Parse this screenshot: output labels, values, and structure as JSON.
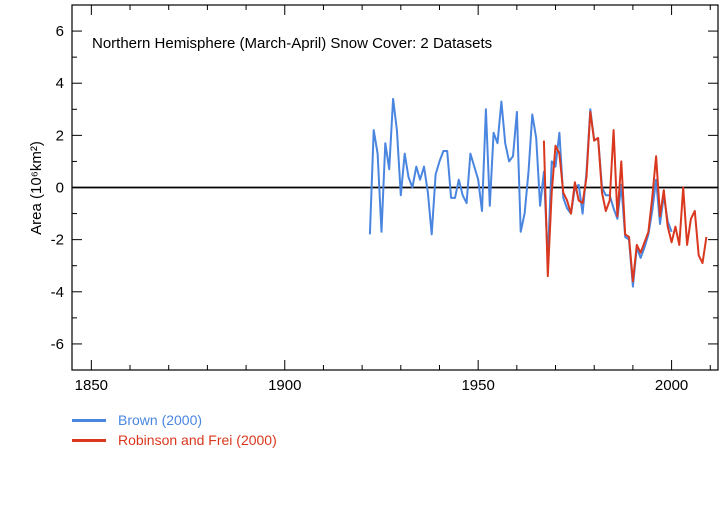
{
  "chart_data": {
    "type": "line",
    "title": "Northern Hemisphere (March-April) Snow Cover: 2 Datasets",
    "ylabel": "Area (10⁶km²)",
    "xlabel": "",
    "xlim": [
      1845,
      2012
    ],
    "ylim": [
      -7,
      7
    ],
    "x_ticks": [
      1850,
      1900,
      1950,
      2000
    ],
    "y_ticks": [
      -6,
      -4,
      -2,
      0,
      2,
      4,
      6
    ],
    "x_tick_labels": [
      "1850",
      "1900",
      "1950",
      "2000"
    ],
    "y_tick_labels": [
      "-6",
      "-4",
      "-2",
      "0",
      "2",
      "4",
      "6"
    ],
    "zero_line": true,
    "grid": false,
    "legend_position": "below-left",
    "series": [
      {
        "name": "Brown (2000)",
        "color": "#4a86e0",
        "x": [
          1922,
          1923,
          1924,
          1925,
          1926,
          1927,
          1928,
          1929,
          1930,
          1931,
          1932,
          1933,
          1934,
          1935,
          1936,
          1937,
          1938,
          1939,
          1940,
          1941,
          1942,
          1943,
          1944,
          1945,
          1946,
          1947,
          1948,
          1949,
          1950,
          1951,
          1952,
          1953,
          1954,
          1955,
          1956,
          1957,
          1958,
          1959,
          1960,
          1961,
          1962,
          1963,
          1964,
          1965,
          1966,
          1967,
          1968,
          1969,
          1970,
          1971,
          1972,
          1973,
          1974,
          1975,
          1976,
          1977,
          1978,
          1979,
          1980,
          1981,
          1982,
          1983,
          1984,
          1985,
          1986,
          1987,
          1988,
          1989,
          1990,
          1991,
          1992,
          1993,
          1994,
          1995,
          1996,
          1997,
          1998,
          1999,
          2000
        ],
        "values": [
          -1.8,
          2.2,
          1.3,
          -1.7,
          1.7,
          0.7,
          3.4,
          2.2,
          -0.3,
          1.3,
          0.4,
          0.0,
          0.8,
          0.3,
          0.8,
          -0.2,
          -1.8,
          0.5,
          1.0,
          1.4,
          1.4,
          -0.4,
          -0.4,
          0.3,
          -0.3,
          -0.6,
          1.3,
          0.8,
          0.3,
          -0.9,
          3.0,
          -0.7,
          2.1,
          1.7,
          3.3,
          1.7,
          1.0,
          1.2,
          2.9,
          -1.7,
          -1.0,
          0.6,
          2.8,
          1.9,
          -0.7,
          0.6,
          -2.8,
          1.0,
          0.8,
          2.1,
          -0.4,
          -0.8,
          -1.0,
          0.0,
          0.1,
          -1.0,
          0.6,
          3.0,
          1.8,
          1.9,
          0.0,
          -0.3,
          -0.3,
          -0.8,
          -1.2,
          0.1,
          -1.9,
          -2.0,
          -3.8,
          -2.3,
          -2.7,
          -2.3,
          -1.8,
          -0.9,
          0.3,
          -1.4,
          -0.3,
          -1.3,
          -1.7
        ]
      },
      {
        "name": "Robinson and Frei (2000)",
        "color": "#d9381e",
        "x": [
          1967,
          1968,
          1969,
          1970,
          1971,
          1972,
          1973,
          1974,
          1975,
          1976,
          1977,
          1978,
          1979,
          1980,
          1981,
          1982,
          1983,
          1984,
          1985,
          1986,
          1987,
          1988,
          1989,
          1990,
          1991,
          1992,
          1993,
          1994,
          1995,
          1996,
          1997,
          1998,
          1999,
          2000,
          2001,
          2002,
          2003,
          2004,
          2005,
          2006,
          2007,
          2008,
          2009
        ],
        "values": [
          1.8,
          -3.4,
          -0.2,
          1.6,
          1.3,
          -0.2,
          -0.5,
          -1.0,
          0.2,
          -0.5,
          -0.6,
          0.4,
          2.9,
          1.8,
          1.9,
          -0.2,
          -0.9,
          -0.5,
          2.2,
          -1.1,
          1.0,
          -1.8,
          -1.9,
          -3.6,
          -2.2,
          -2.5,
          -2.1,
          -1.7,
          -0.4,
          1.2,
          -1.1,
          -0.1,
          -1.5,
          -2.1,
          -1.5,
          -2.2,
          0.0,
          -2.2,
          -1.2,
          -0.9,
          -2.6,
          -2.9,
          -1.9
        ]
      }
    ]
  }
}
